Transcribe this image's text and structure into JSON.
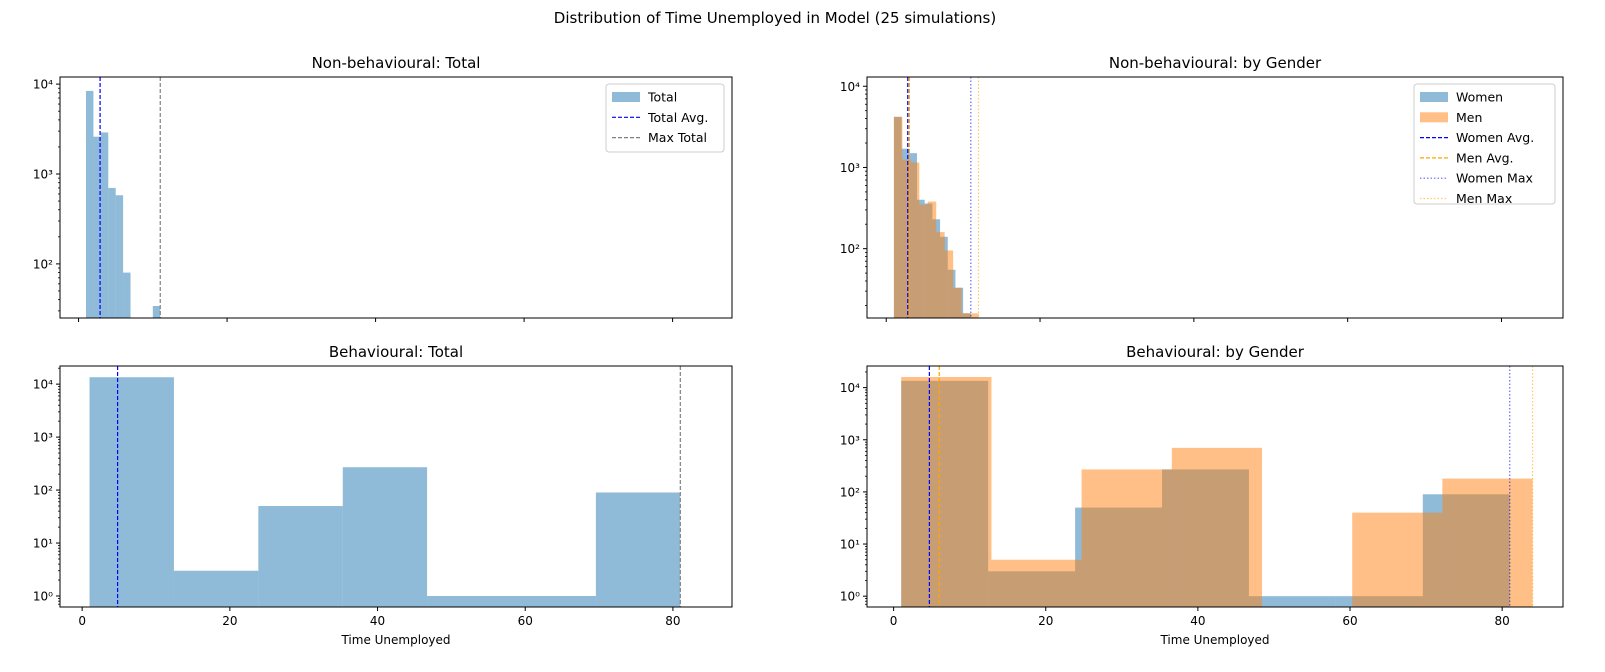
{
  "figure": {
    "suptitle": "Distribution of Time Unemployed in Model (25 simulations)"
  },
  "colors": {
    "blue": "#1f77b4",
    "orange": "#ff7f0e",
    "blue_line": "#0000ff",
    "orange_line": "#ffa500",
    "gray_line": "#808080",
    "axis": "#000000"
  },
  "chart_data": [
    {
      "type": "bar",
      "title": "Non-behavioural: Total",
      "xlabel": "",
      "ylabel": "",
      "xlim": [
        -2.5,
        88
      ],
      "yscale": "log",
      "ylim": [
        25,
        12000
      ],
      "yticks": [
        100,
        1000,
        10000
      ],
      "ytick_labels": [
        "10²",
        "10³",
        "10⁴"
      ],
      "xticks": [
        0,
        20,
        40,
        60,
        80
      ],
      "xtick_labels_visible": false,
      "legend": "top-right",
      "series": [
        {
          "name": "Total",
          "color": "blue",
          "edges": [
            1,
            2,
            3,
            4,
            5,
            6,
            7,
            8,
            9,
            10,
            11
          ],
          "counts": [
            8400,
            2600,
            2900,
            700,
            580,
            80,
            0,
            0,
            0,
            34
          ]
        }
      ],
      "vlines": [
        {
          "name": "Total Avg.",
          "x": 2.9,
          "color": "blue_line",
          "style": "dashed"
        },
        {
          "name": "Max Total",
          "x": 11,
          "color": "gray_line",
          "style": "dashed"
        }
      ]
    },
    {
      "type": "bar",
      "title": "Non-behavioural: by Gender",
      "xlabel": "",
      "ylabel": "",
      "xlim": [
        -2.5,
        88
      ],
      "yscale": "log",
      "ylim": [
        14,
        13000
      ],
      "yticks": [
        100,
        1000,
        10000
      ],
      "ytick_labels": [
        "10²",
        "10³",
        "10⁴"
      ],
      "xticks": [
        0,
        20,
        40,
        60,
        80
      ],
      "xtick_labels_visible": false,
      "legend": "top-right",
      "series": [
        {
          "name": "Women",
          "color": "blue",
          "edges": [
            1,
            2,
            3,
            4,
            5,
            6,
            7,
            8,
            9,
            10,
            11
          ],
          "counts": [
            4200,
            1700,
            1500,
            400,
            360,
            230,
            140,
            55,
            33,
            16
          ]
        },
        {
          "name": "Men",
          "color": "orange",
          "edges": [
            1,
            2.1,
            3.2,
            4.3,
            5.4,
            6.5,
            7.6,
            8.7,
            9.8,
            10.9,
            12
          ],
          "counts": [
            4200,
            1250,
            1150,
            350,
            380,
            160,
            95,
            33,
            16,
            16
          ]
        }
      ],
      "vlines": [
        {
          "name": "Women Avg.",
          "x": 2.8,
          "color": "blue_line",
          "style": "dashed"
        },
        {
          "name": "Men Avg.",
          "x": 3.0,
          "color": "orange_line",
          "style": "dashed"
        },
        {
          "name": "Women Max",
          "x": 11,
          "color": "blue_line",
          "style": "dotted"
        },
        {
          "name": "Men Max",
          "x": 12,
          "color": "orange_line",
          "style": "dotted"
        }
      ]
    },
    {
      "type": "bar",
      "title": "Behavioural: Total",
      "xlabel": "Time Unemployed",
      "ylabel": "",
      "xlim": [
        -3,
        88
      ],
      "yscale": "log",
      "ylim": [
        0.62,
        22000
      ],
      "yticks": [
        1,
        10,
        100,
        1000,
        10000
      ],
      "ytick_labels": [
        "10⁰",
        "10¹",
        "10²",
        "10³",
        "10⁴"
      ],
      "xticks": [
        0,
        20,
        40,
        60,
        80
      ],
      "xtick_labels": [
        "0",
        "20",
        "40",
        "60",
        "80"
      ],
      "xtick_labels_visible": true,
      "legend": "none",
      "series": [
        {
          "name": "",
          "color": "blue",
          "edges": [
            1,
            12.43,
            23.86,
            35.29,
            46.71,
            58.14,
            69.57,
            81
          ],
          "counts": [
            13500,
            3,
            50,
            270,
            1,
            1,
            90
          ]
        }
      ],
      "vlines": [
        {
          "name": "",
          "x": 4.8,
          "color": "blue_line",
          "style": "dashed"
        },
        {
          "name": "",
          "x": 81,
          "color": "gray_line",
          "style": "dashed"
        }
      ]
    },
    {
      "type": "bar",
      "title": "Behavioural: by Gender",
      "xlabel": "Time Unemployed",
      "ylabel": "",
      "xlim": [
        -3.5,
        88
      ],
      "yscale": "log",
      "ylim": [
        0.62,
        26000
      ],
      "yticks": [
        1,
        10,
        100,
        1000,
        10000
      ],
      "ytick_labels": [
        "10⁰",
        "10¹",
        "10²",
        "10³",
        "10⁴"
      ],
      "xticks": [
        0,
        20,
        40,
        60,
        80
      ],
      "xtick_labels": [
        "0",
        "20",
        "40",
        "60",
        "80"
      ],
      "xtick_labels_visible": true,
      "legend": "none",
      "series": [
        {
          "name": "",
          "color": "blue",
          "edges": [
            1,
            12.43,
            23.86,
            35.29,
            46.71,
            58.14,
            69.57,
            81
          ],
          "counts": [
            13500,
            3,
            50,
            270,
            1,
            1,
            90
          ]
        },
        {
          "name": "",
          "color": "orange",
          "edges": [
            1,
            12.86,
            24.71,
            36.57,
            48.43,
            60.29,
            72.14,
            84
          ],
          "counts": [
            16000,
            5,
            270,
            700,
            0,
            40,
            180
          ]
        }
      ],
      "vlines": [
        {
          "name": "",
          "x": 4.7,
          "color": "blue_line",
          "style": "dashed"
        },
        {
          "name": "",
          "x": 6.0,
          "color": "orange_line",
          "style": "dashed"
        },
        {
          "name": "",
          "x": 81,
          "color": "blue_line",
          "style": "dotted"
        },
        {
          "name": "",
          "x": 84,
          "color": "orange_line",
          "style": "dotted"
        }
      ]
    }
  ]
}
